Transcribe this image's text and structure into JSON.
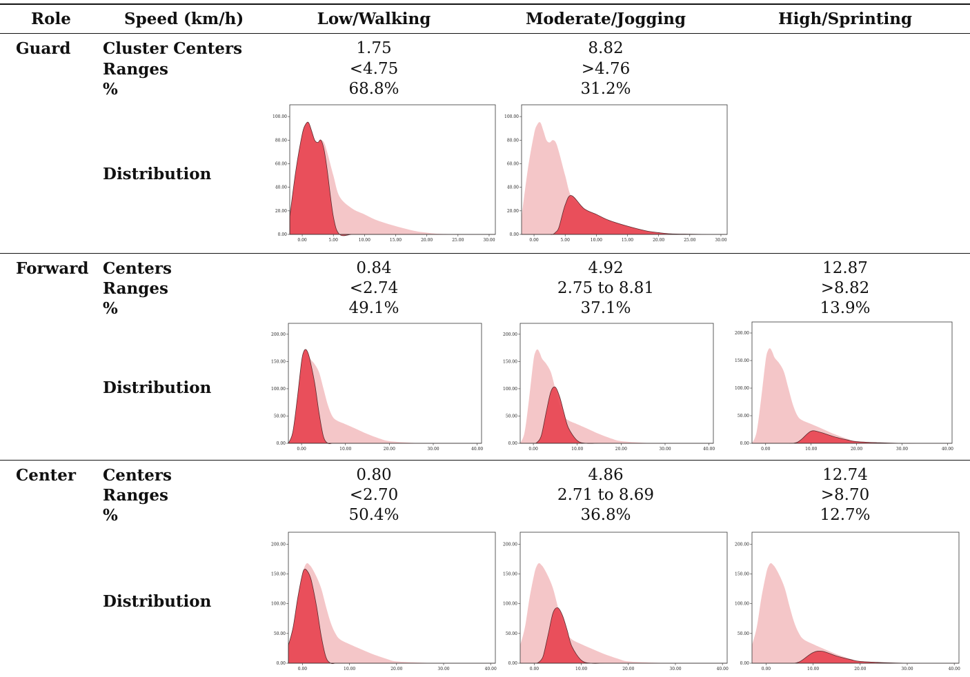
{
  "header": {
    "role": "Role",
    "speed": "Speed (km/h)",
    "low": "Low/Walking",
    "moderate": "Moderate/Jogging",
    "high": "High/Sprinting"
  },
  "sections": [
    {
      "role": "Guard",
      "labels": [
        "Cluster Centers",
        "Ranges",
        "%"
      ],
      "distribution_label": "Distribution",
      "low": {
        "center": "1.75",
        "range": "<4.75",
        "pct": "68.8%"
      },
      "moderate": {
        "center": "8.82",
        "range": ">4.76",
        "pct": "31.2%"
      },
      "high": {
        "center": "",
        "range": "",
        "pct": ""
      }
    },
    {
      "role": "Forward",
      "labels": [
        "Centers",
        "Ranges",
        "%"
      ],
      "distribution_label": "Distribution",
      "low": {
        "center": "0.84",
        "range": "<2.74",
        "pct": "49.1%"
      },
      "moderate": {
        "center": "4.92",
        "range": "2.75 to 8.81",
        "pct": "37.1%"
      },
      "high": {
        "center": "12.87",
        "range": ">8.82",
        "pct": "13.9%"
      }
    },
    {
      "role": "Center",
      "labels": [
        "Centers",
        "Ranges",
        "%"
      ],
      "distribution_label": "Distribution",
      "low": {
        "center": "0.80",
        "range": "<2.70",
        "pct": "50.4%"
      },
      "moderate": {
        "center": "4.86",
        "range": "2.71 to 8.69",
        "pct": "36.8%"
      },
      "high": {
        "center": "12.74",
        "range": ">8.70",
        "pct": "12.7%"
      }
    }
  ],
  "colors": {
    "total": "#f4c6c8",
    "cluster": "#e8414f",
    "cluster_edge": "#5a2a2e"
  },
  "chart_data": [
    {
      "type": "area",
      "id": "guard-low",
      "xlim": [
        -2,
        31
      ],
      "ylim": [
        0,
        110
      ],
      "xticks": [
        "0.00",
        "5.00",
        "10.00",
        "15.00",
        "20.00",
        "25.00",
        "30.00"
      ],
      "yticks": [
        "0.00",
        "20.00",
        "40.00",
        "60.00",
        "80.00",
        "100.00"
      ],
      "x": [
        -2,
        -1,
        0,
        0.5,
        1,
        1.5,
        2,
        2.5,
        3,
        3.5,
        4,
        5,
        6,
        8,
        10,
        12,
        15,
        18,
        20,
        22,
        25,
        28,
        31
      ],
      "total": [
        15,
        55,
        85,
        93,
        95,
        88,
        80,
        78,
        80,
        78,
        70,
        50,
        32,
        22,
        17,
        12,
        7,
        3,
        1.5,
        0.5,
        0.2,
        0,
        0
      ],
      "cluster": [
        15,
        55,
        85,
        93,
        95,
        88,
        80,
        78,
        80,
        72,
        55,
        15,
        0,
        0,
        0,
        0,
        0,
        0,
        0,
        0,
        0,
        0,
        0
      ]
    },
    {
      "type": "area",
      "id": "guard-moderate",
      "xlim": [
        -2,
        31
      ],
      "ylim": [
        0,
        110
      ],
      "xticks": [
        "0.00",
        "5.00",
        "10.00",
        "15.00",
        "20.00",
        "25.00",
        "30.00"
      ],
      "yticks": [
        "0.00",
        "20.00",
        "40.00",
        "60.00",
        "80.00",
        "100.00"
      ],
      "x": [
        -2,
        -1,
        0,
        0.5,
        1,
        1.5,
        2,
        2.5,
        3,
        3.5,
        4,
        5,
        6,
        8,
        10,
        12,
        15,
        18,
        20,
        22,
        25,
        28,
        31
      ],
      "total": [
        15,
        55,
        85,
        93,
        95,
        88,
        80,
        78,
        80,
        78,
        70,
        50,
        32,
        22,
        17,
        12,
        7,
        3,
        1.5,
        0.5,
        0.2,
        0,
        0
      ],
      "cluster": [
        0,
        0,
        0,
        0,
        0,
        0,
        0,
        0,
        0,
        2,
        6,
        25,
        33,
        22,
        17,
        12,
        7,
        3,
        1.5,
        0.5,
        0.2,
        0,
        0
      ]
    },
    {
      "type": "area",
      "id": "forward-low",
      "xlim": [
        -3,
        41
      ],
      "ylim": [
        0,
        220
      ],
      "xticks": [
        "0.00",
        "10.00",
        "20.00",
        "30.00",
        "40.00"
      ],
      "yticks": [
        "0.00",
        "50.00",
        "100.00",
        "150.00",
        "200.00"
      ],
      "x": [
        -3,
        -2,
        -1,
        0,
        0.5,
        1,
        1.5,
        2,
        3,
        4,
        5,
        6,
        7,
        8,
        10,
        12,
        15,
        18,
        20,
        25,
        30,
        35,
        41
      ],
      "total": [
        0,
        20,
        80,
        150,
        168,
        172,
        165,
        155,
        145,
        130,
        100,
        70,
        50,
        42,
        35,
        28,
        17,
        8,
        4,
        1,
        0,
        0,
        0
      ],
      "cluster": [
        0,
        20,
        80,
        150,
        168,
        172,
        165,
        150,
        110,
        55,
        12,
        0,
        0,
        0,
        0,
        0,
        0,
        0,
        0,
        0,
        0,
        0,
        0
      ]
    },
    {
      "type": "area",
      "id": "forward-moderate",
      "xlim": [
        -3,
        41
      ],
      "ylim": [
        0,
        220
      ],
      "xticks": [
        "0.00",
        "10.00",
        "20.00",
        "30.00",
        "40.00"
      ],
      "yticks": [
        "0.00",
        "50.00",
        "100.00",
        "150.00",
        "200.00"
      ],
      "x": [
        -3,
        -2,
        -1,
        0,
        0.5,
        1,
        1.5,
        2,
        3,
        4,
        5,
        6,
        7,
        8,
        10,
        12,
        15,
        18,
        20,
        25,
        30,
        35,
        41
      ],
      "total": [
        0,
        20,
        80,
        150,
        168,
        172,
        165,
        155,
        145,
        130,
        100,
        70,
        50,
        42,
        35,
        28,
        17,
        8,
        4,
        1,
        0,
        0,
        0
      ],
      "cluster": [
        0,
        0,
        0,
        0,
        0,
        3,
        8,
        20,
        60,
        95,
        103,
        85,
        55,
        28,
        5,
        0,
        0,
        0,
        0,
        0,
        0,
        0,
        0
      ]
    },
    {
      "type": "area",
      "id": "forward-high",
      "xlim": [
        -3,
        41
      ],
      "ylim": [
        0,
        220
      ],
      "xticks": [
        "0.00",
        "10.00",
        "20.00",
        "30.00",
        "40.00"
      ],
      "yticks": [
        "0.00",
        "50.00",
        "100.00",
        "150.00",
        "200.00"
      ],
      "x": [
        -3,
        -2,
        -1,
        0,
        0.5,
        1,
        1.5,
        2,
        3,
        4,
        5,
        6,
        7,
        8,
        10,
        12,
        15,
        18,
        20,
        25,
        30,
        35,
        41
      ],
      "total": [
        0,
        20,
        80,
        150,
        168,
        172,
        165,
        155,
        145,
        130,
        100,
        70,
        50,
        42,
        35,
        28,
        17,
        8,
        4,
        1,
        0,
        0,
        0
      ],
      "cluster": [
        0,
        0,
        0,
        0,
        0,
        0,
        0,
        0,
        0,
        0,
        0,
        0,
        2,
        8,
        22,
        20,
        12,
        6,
        3,
        1,
        0,
        0,
        0
      ]
    },
    {
      "type": "area",
      "id": "center-low",
      "xlim": [
        -3,
        41
      ],
      "ylim": [
        0,
        220
      ],
      "xticks": [
        "0.00",
        "10.00",
        "20.00",
        "30.00",
        "40.00"
      ],
      "yticks": [
        "0.00",
        "50.00",
        "100.00",
        "150.00",
        "200.00"
      ],
      "x": [
        -3,
        -2,
        -1,
        0,
        0.5,
        1,
        1.5,
        2,
        3,
        4,
        5,
        6,
        7,
        8,
        10,
        12,
        15,
        18,
        20,
        25,
        30,
        35,
        41
      ],
      "total": [
        30,
        60,
        110,
        150,
        163,
        168,
        165,
        160,
        145,
        125,
        95,
        68,
        50,
        40,
        32,
        25,
        15,
        7,
        3,
        1,
        0,
        0,
        0
      ],
      "cluster": [
        30,
        60,
        110,
        150,
        158,
        155,
        148,
        135,
        95,
        45,
        10,
        0,
        0,
        0,
        0,
        0,
        0,
        0,
        0,
        0,
        0,
        0,
        0
      ]
    },
    {
      "type": "area",
      "id": "center-moderate",
      "xlim": [
        -3,
        41
      ],
      "ylim": [
        0,
        220
      ],
      "xticks": [
        "0.00",
        "10.00",
        "20.00",
        "30.00",
        "40.00"
      ],
      "yticks": [
        "0.00",
        "50.00",
        "100.00",
        "150.00",
        "200.00"
      ],
      "x": [
        -3,
        -2,
        -1,
        0,
        0.5,
        1,
        1.5,
        2,
        3,
        4,
        5,
        6,
        7,
        8,
        10,
        12,
        15,
        18,
        20,
        25,
        30,
        35,
        41
      ],
      "total": [
        30,
        60,
        110,
        150,
        163,
        168,
        165,
        160,
        145,
        125,
        95,
        68,
        50,
        40,
        32,
        25,
        15,
        7,
        3,
        1,
        0,
        0,
        0
      ],
      "cluster": [
        0,
        0,
        0,
        0,
        0,
        2,
        6,
        15,
        50,
        85,
        93,
        80,
        55,
        28,
        5,
        0,
        0,
        0,
        0,
        0,
        0,
        0,
        0
      ]
    },
    {
      "type": "area",
      "id": "center-high",
      "xlim": [
        -3,
        41
      ],
      "ylim": [
        0,
        220
      ],
      "xticks": [
        "0.00",
        "10.00",
        "20.00",
        "30.00",
        "40.00"
      ],
      "yticks": [
        "0.00",
        "50.00",
        "100.00",
        "150.00",
        "200.00"
      ],
      "x": [
        -3,
        -2,
        -1,
        0,
        0.5,
        1,
        1.5,
        2,
        3,
        4,
        5,
        6,
        7,
        8,
        10,
        12,
        15,
        18,
        20,
        25,
        30,
        35,
        41
      ],
      "total": [
        30,
        60,
        110,
        150,
        163,
        168,
        165,
        160,
        145,
        125,
        95,
        68,
        50,
        40,
        32,
        25,
        15,
        7,
        3,
        1,
        0,
        0,
        0
      ],
      "cluster": [
        0,
        0,
        0,
        0,
        0,
        0,
        0,
        0,
        0,
        0,
        0,
        0,
        2,
        7,
        18,
        20,
        12,
        6,
        3,
        1,
        0,
        0,
        0
      ]
    }
  ]
}
